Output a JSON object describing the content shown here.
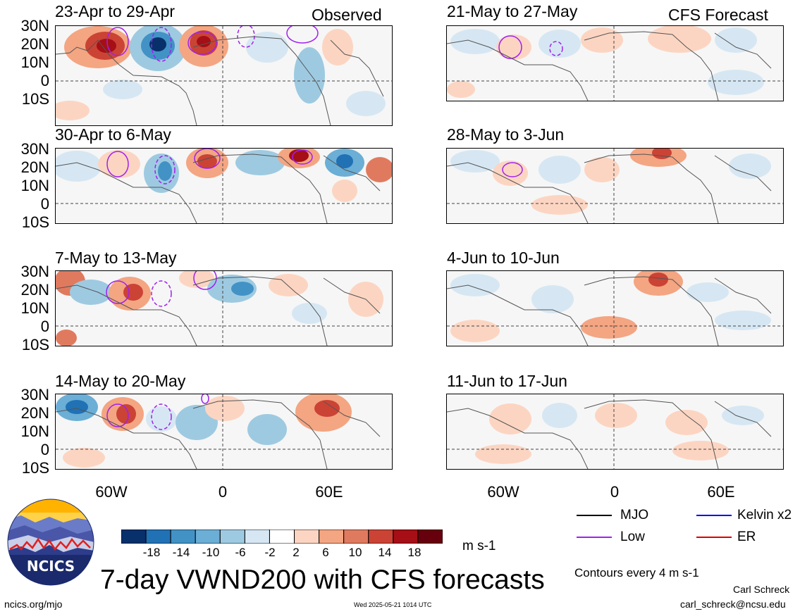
{
  "header": {
    "observed_label": "Observed",
    "forecast_label": "CFS Forecast"
  },
  "panels": {
    "observed": [
      "23-Apr to 29-Apr",
      "30-Apr to 6-May",
      "7-May to 13-May",
      "14-May to 20-May"
    ],
    "forecast": [
      "21-May to 27-May",
      "28-May to 3-Jun",
      "4-Jun to 10-Jun",
      "11-Jun to 17-Jun"
    ]
  },
  "axes": {
    "lat_ticks": [
      "30N",
      "20N",
      "10N",
      "0",
      "10S"
    ],
    "lon_ticks": [
      "60W",
      "0",
      "60E"
    ]
  },
  "colorbar": {
    "labels": [
      "-18",
      "-14",
      "-10",
      "-6",
      "-2",
      "2",
      "6",
      "10",
      "14",
      "18"
    ],
    "colors": [
      "#08306b",
      "#2171b5",
      "#4292c6",
      "#6baed6",
      "#9ecae1",
      "#d6e7f3",
      "#ffffff",
      "#fcd5c2",
      "#f4a582",
      "#e07a5f",
      "#cb4335",
      "#a50f15",
      "#67000d"
    ],
    "units": "m s-1"
  },
  "legend": {
    "mjo": "MJO",
    "kelvin": "Kelvin x2",
    "low": "Low",
    "er": "ER",
    "mjo_color": "#000000",
    "kelvin_color": "#0000ff",
    "low_color": "#a020f0",
    "er_color": "#e00000"
  },
  "title": "7-day VWND200 with CFS forecasts",
  "contour_note": "Contours every 4 m s-1",
  "logo_text": "NCICS",
  "footer": {
    "url": "ncics.org/mjo",
    "timestamp": "Wed 2025-05-21 1014 UTC",
    "author": "Carl Schreck",
    "email": "carl_schreck@ncsu.edu"
  }
}
